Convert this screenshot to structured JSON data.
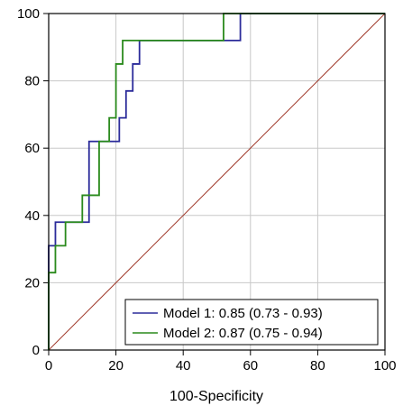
{
  "chart_data": {
    "type": "line",
    "title": "",
    "xlabel": "100-Specificity",
    "ylabel": "",
    "xlim": [
      0,
      100
    ],
    "ylim": [
      0,
      100
    ],
    "x_ticks": [
      "0",
      "20",
      "40",
      "60",
      "80",
      "100"
    ],
    "y_ticks": [
      "0",
      "20",
      "40",
      "60",
      "80",
      "100"
    ],
    "grid": true,
    "legend_position": "bottom-right",
    "series": [
      {
        "name": "Model 1",
        "legend_label": "Model 1: 0.85 (0.73 - 0.93)",
        "color": "#2b2b9a",
        "x": [
          0,
          0,
          2,
          2,
          12,
          12,
          21,
          21,
          23,
          23,
          25,
          25,
          27,
          27,
          29,
          29,
          57,
          57,
          100
        ],
        "y": [
          0,
          31,
          31,
          38,
          38,
          62,
          62,
          69,
          69,
          77,
          77,
          85,
          85,
          92,
          92,
          92,
          92,
          100,
          100
        ]
      },
      {
        "name": "Model 2",
        "legend_label": "Model 2: 0.87 (0.75 - 0.94)",
        "color": "#2a8a1c",
        "x": [
          0,
          0,
          2,
          2,
          5,
          5,
          10,
          10,
          15,
          15,
          18,
          18,
          20,
          20,
          22,
          22,
          52,
          52,
          100
        ],
        "y": [
          0,
          23,
          23,
          31,
          31,
          38,
          38,
          46,
          46,
          62,
          62,
          69,
          69,
          85,
          85,
          92,
          92,
          100,
          100
        ]
      },
      {
        "name": "Reference",
        "color": "#a0392b",
        "x": [
          0,
          100
        ],
        "y": [
          0,
          100
        ]
      }
    ]
  }
}
